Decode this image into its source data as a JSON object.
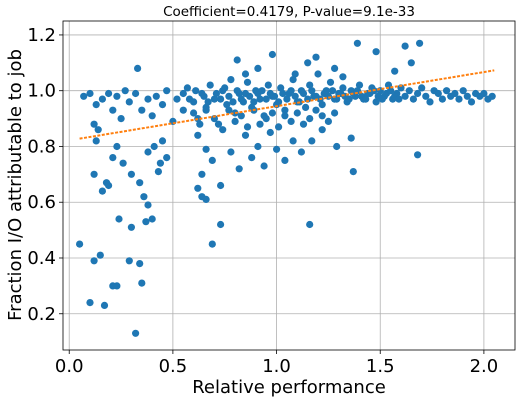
{
  "chart_data": {
    "type": "scatter",
    "title": "Coefficient=0.4179, P-value=9.1e-33",
    "xlabel": "Relative performance",
    "ylabel": "Fraction I/O attributable to job",
    "xlim": [
      -0.03,
      2.15
    ],
    "ylim": [
      0.07,
      1.25
    ],
    "x_ticks": [
      "0.0",
      "0.5",
      "1.0",
      "1.5",
      "2.0"
    ],
    "x_tick_values": [
      0.0,
      0.5,
      1.0,
      1.5,
      2.0
    ],
    "y_ticks": [
      "0.2",
      "0.4",
      "0.6",
      "0.8",
      "1.0",
      "1.2"
    ],
    "y_tick_values": [
      0.2,
      0.4,
      0.6,
      0.8,
      1.0,
      1.2
    ],
    "grid": true,
    "colors": {
      "points": "#1f77b4",
      "fit": "#ff7f0e"
    },
    "fit_line": {
      "x": [
        0.05,
        2.05
      ],
      "y": [
        0.828,
        1.073
      ]
    },
    "series": [
      {
        "values": [
          [
            0.05,
            0.45
          ],
          [
            0.1,
            0.24
          ],
          [
            0.12,
            0.39
          ],
          [
            0.14,
            0.86
          ],
          [
            0.15,
            0.41
          ],
          [
            0.17,
            0.23
          ],
          [
            0.18,
            0.67
          ],
          [
            0.21,
            0.3
          ],
          [
            0.23,
            0.3
          ],
          [
            0.24,
            0.54
          ],
          [
            0.29,
            0.39
          ],
          [
            0.3,
            0.51
          ],
          [
            0.32,
            0.13
          ],
          [
            0.34,
            0.38
          ],
          [
            0.35,
            0.31
          ],
          [
            0.37,
            0.53
          ],
          [
            0.38,
            0.59
          ],
          [
            0.4,
            0.54
          ],
          [
            0.44,
            0.74
          ],
          [
            0.62,
            0.65
          ],
          [
            0.64,
            0.62
          ],
          [
            0.66,
            0.61
          ],
          [
            0.69,
            0.45
          ],
          [
            0.73,
            0.52
          ],
          [
            1.16,
            0.52
          ],
          [
            1.37,
            0.71
          ],
          [
            1.68,
            0.77
          ],
          [
            0.12,
            0.7
          ],
          [
            0.13,
            0.82
          ],
          [
            0.16,
            0.64
          ],
          [
            0.19,
            0.66
          ],
          [
            0.21,
            0.76
          ],
          [
            0.23,
            0.8
          ],
          [
            0.26,
            0.74
          ],
          [
            0.3,
            0.7
          ],
          [
            0.34,
            0.67
          ],
          [
            0.36,
            0.62
          ],
          [
            0.38,
            0.78
          ],
          [
            0.41,
            0.8
          ],
          [
            0.43,
            0.71
          ],
          [
            0.45,
            0.82
          ],
          [
            0.47,
            0.76
          ],
          [
            0.62,
            0.84
          ],
          [
            0.64,
            0.7
          ],
          [
            0.66,
            0.79
          ],
          [
            0.69,
            0.75
          ],
          [
            0.73,
            0.66
          ],
          [
            0.78,
            0.78
          ],
          [
            0.82,
            0.72
          ],
          [
            0.85,
            0.84
          ],
          [
            0.88,
            0.76
          ],
          [
            0.91,
            0.8
          ],
          [
            0.94,
            0.73
          ],
          [
            0.97,
            0.85
          ],
          [
            1.0,
            0.79
          ],
          [
            1.04,
            0.75
          ],
          [
            1.08,
            0.82
          ],
          [
            1.12,
            0.78
          ],
          [
            1.17,
            0.82
          ],
          [
            1.22,
            0.86
          ],
          [
            1.29,
            0.8
          ],
          [
            1.36,
            0.83
          ],
          [
            0.07,
            0.98
          ],
          [
            0.1,
            0.99
          ],
          [
            0.12,
            0.88
          ],
          [
            0.13,
            0.95
          ],
          [
            0.16,
            0.97
          ],
          [
            0.19,
            0.99
          ],
          [
            0.21,
            0.93
          ],
          [
            0.23,
            0.98
          ],
          [
            0.25,
            0.9
          ],
          [
            0.27,
            1.0
          ],
          [
            0.29,
            0.96
          ],
          [
            0.32,
            0.99
          ],
          [
            0.33,
            1.08
          ],
          [
            0.35,
            0.93
          ],
          [
            0.38,
            0.97
          ],
          [
            0.4,
            0.91
          ],
          [
            0.42,
            0.98
          ],
          [
            0.45,
            0.95
          ],
          [
            0.47,
            1.0
          ],
          [
            0.5,
            0.89
          ],
          [
            0.52,
            0.97
          ],
          [
            0.55,
            0.93
          ],
          [
            0.57,
            1.01
          ],
          [
            0.6,
            0.96
          ],
          [
            0.62,
            0.9
          ],
          [
            0.64,
            0.99
          ],
          [
            0.66,
            0.94
          ],
          [
            0.68,
            1.02
          ],
          [
            0.7,
            0.97
          ],
          [
            0.72,
            0.88
          ],
          [
            0.74,
            1.0
          ],
          [
            0.76,
            0.95
          ],
          [
            0.78,
            1.04
          ],
          [
            0.8,
            0.92
          ],
          [
            0.82,
            0.99
          ],
          [
            0.84,
            0.96
          ],
          [
            0.86,
            1.03
          ],
          [
            0.88,
            0.94
          ],
          [
            0.9,
            1.0
          ],
          [
            0.92,
            0.97
          ],
          [
            0.94,
            0.91
          ],
          [
            0.96,
            1.02
          ],
          [
            0.98,
            0.98
          ],
          [
            1.0,
            0.95
          ],
          [
            1.02,
            1.01
          ],
          [
            1.04,
            0.93
          ],
          [
            1.06,
            0.99
          ],
          [
            1.08,
            1.04
          ],
          [
            1.1,
            0.96
          ],
          [
            1.12,
            1.0
          ],
          [
            1.14,
            0.94
          ],
          [
            1.16,
            1.02
          ],
          [
            1.18,
            0.98
          ],
          [
            1.2,
            1.06
          ],
          [
            1.22,
            0.95
          ],
          [
            1.24,
            1.0
          ],
          [
            1.26,
            1.03
          ],
          [
            1.28,
            0.97
          ],
          [
            1.3,
            0.99
          ],
          [
            1.32,
            1.01
          ],
          [
            1.34,
            0.96
          ],
          [
            1.36,
            1.0
          ],
          [
            1.38,
            0.98
          ],
          [
            1.4,
            1.02
          ],
          [
            1.42,
            0.97
          ],
          [
            1.44,
            0.99
          ],
          [
            1.46,
            1.01
          ],
          [
            1.48,
            0.96
          ],
          [
            1.5,
            1.0
          ],
          [
            1.52,
            0.98
          ],
          [
            1.54,
            1.02
          ],
          [
            1.56,
            0.97
          ],
          [
            1.58,
            0.99
          ],
          [
            1.6,
            1.01
          ],
          [
            1.62,
            0.98
          ],
          [
            1.64,
            1.0
          ],
          [
            1.66,
            0.97
          ],
          [
            1.68,
            0.99
          ],
          [
            1.7,
            1.01
          ],
          [
            1.72,
            0.98
          ],
          [
            1.74,
            0.96
          ],
          [
            1.76,
            1.0
          ],
          [
            1.78,
            0.99
          ],
          [
            1.8,
            0.97
          ],
          [
            1.82,
            1.0
          ],
          [
            1.84,
            0.98
          ],
          [
            1.86,
            0.99
          ],
          [
            1.88,
            0.97
          ],
          [
            1.9,
            1.0
          ],
          [
            1.92,
            0.98
          ],
          [
            1.94,
            0.96
          ],
          [
            1.96,
            0.99
          ],
          [
            1.98,
            0.98
          ],
          [
            2.0,
            0.99
          ],
          [
            2.02,
            0.97
          ],
          [
            2.04,
            0.98
          ],
          [
            0.81,
            1.11
          ],
          [
            0.85,
            1.06
          ],
          [
            0.91,
            1.08
          ],
          [
            0.98,
            1.13
          ],
          [
            1.09,
            1.06
          ],
          [
            1.15,
            1.1
          ],
          [
            1.19,
            1.12
          ],
          [
            1.28,
            1.08
          ],
          [
            1.32,
            1.05
          ],
          [
            1.39,
            1.17
          ],
          [
            1.48,
            1.14
          ],
          [
            1.57,
            1.07
          ],
          [
            1.62,
            1.16
          ],
          [
            1.65,
            1.1
          ],
          [
            1.69,
            1.17
          ],
          [
            0.55,
            0.99
          ],
          [
            0.58,
            0.97
          ],
          [
            0.61,
            1.0
          ],
          [
            0.65,
            0.98
          ],
          [
            0.67,
            0.96
          ],
          [
            0.71,
            0.99
          ],
          [
            0.73,
            0.97
          ],
          [
            0.75,
            1.01
          ],
          [
            0.77,
            0.98
          ],
          [
            0.79,
            0.96
          ],
          [
            0.81,
            1.0
          ],
          [
            0.83,
            0.97
          ],
          [
            0.85,
            0.99
          ],
          [
            0.87,
            0.98
          ],
          [
            0.89,
            0.96
          ],
          [
            0.91,
            0.99
          ],
          [
            0.93,
            1.0
          ],
          [
            0.95,
            0.97
          ],
          [
            0.97,
            0.99
          ],
          [
            0.99,
            0.98
          ],
          [
            1.01,
            0.96
          ],
          [
            1.03,
            0.99
          ],
          [
            1.05,
            0.97
          ],
          [
            1.07,
            1.0
          ],
          [
            1.09,
            0.98
          ],
          [
            1.11,
            0.96
          ],
          [
            1.13,
            0.99
          ],
          [
            1.15,
            0.97
          ],
          [
            1.17,
            1.0
          ],
          [
            1.19,
            0.98
          ],
          [
            1.21,
            0.97
          ],
          [
            1.23,
            0.99
          ],
          [
            1.25,
            0.98
          ],
          [
            1.27,
            1.0
          ],
          [
            1.29,
            0.97
          ],
          [
            1.31,
            0.99
          ],
          [
            1.33,
            0.98
          ],
          [
            1.35,
            0.97
          ],
          [
            1.37,
            0.99
          ],
          [
            1.39,
            1.0
          ],
          [
            1.41,
            0.98
          ],
          [
            1.43,
            0.97
          ],
          [
            1.45,
            0.99
          ],
          [
            1.47,
            1.0
          ],
          [
            1.49,
            0.98
          ],
          [
            1.51,
            0.97
          ],
          [
            1.53,
            0.99
          ],
          [
            1.55,
            1.0
          ],
          [
            1.57,
            0.98
          ],
          [
            1.59,
            0.97
          ],
          [
            0.6,
            0.92
          ],
          [
            0.63,
            0.88
          ],
          [
            0.66,
            0.93
          ],
          [
            0.7,
            0.9
          ],
          [
            0.74,
            0.86
          ],
          [
            0.77,
            0.93
          ],
          [
            0.8,
            0.89
          ],
          [
            0.83,
            0.91
          ],
          [
            0.86,
            0.87
          ],
          [
            0.89,
            0.93
          ],
          [
            0.92,
            0.88
          ],
          [
            0.95,
            0.9
          ],
          [
            0.98,
            0.92
          ],
          [
            1.01,
            0.87
          ],
          [
            1.04,
            0.91
          ],
          [
            1.07,
            0.89
          ],
          [
            1.1,
            0.92
          ],
          [
            1.13,
            0.88
          ],
          [
            1.16,
            0.9
          ],
          [
            1.19,
            0.93
          ],
          [
            1.22,
            0.91
          ],
          [
            1.25,
            0.89
          ],
          [
            1.28,
            0.92
          ]
        ]
      }
    ]
  }
}
